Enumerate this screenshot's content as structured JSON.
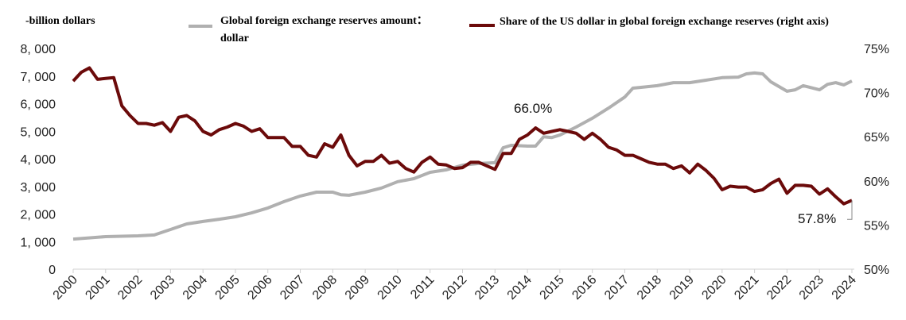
{
  "legend": {
    "unit_label": "-billion dollars",
    "reserves_label_line1": "Global foreign exchange reserves amount：",
    "reserves_label_line2": "dollar",
    "share_label": "Share of the US dollar in global foreign exchange reserves (right axis)"
  },
  "chart_data": {
    "type": "line",
    "xlim": [
      2000,
      2024
    ],
    "x_ticks": [
      "2000",
      "2001",
      "2002",
      "2003",
      "2004",
      "2005",
      "2006",
      "2007",
      "2008",
      "2009",
      "2010",
      "2011",
      "2012",
      "2013",
      "2014",
      "2015",
      "2016",
      "2017",
      "2018",
      "2019",
      "2020",
      "2021",
      "2022",
      "2023",
      "2024"
    ],
    "y_left": {
      "label": "-billion dollars",
      "lim": [
        0,
        8000
      ],
      "ticks": [
        "0",
        "1, 000",
        "2, 000",
        "3, 000",
        "4, 000",
        "5, 000",
        "6, 000",
        "7, 000",
        "8, 000"
      ]
    },
    "y_right": {
      "label": "right axis",
      "lim": [
        50,
        75
      ],
      "ticks": [
        "50%",
        "55%",
        "60%",
        "65%",
        "70%",
        "75%"
      ]
    },
    "grid": false,
    "legend_position": "top",
    "series": [
      {
        "name": "Global foreign exchange reserves amount：dollar",
        "axis": "left",
        "color": "#b0b0b0",
        "x": [
          2000,
          2001,
          2002,
          2002.5,
          2003,
          2003.5,
          2004,
          2004.5,
          2005,
          2005.5,
          2006,
          2006.5,
          2007,
          2007.5,
          2008,
          2008.25,
          2008.5,
          2009,
          2009.5,
          2010,
          2010.5,
          2011,
          2011.5,
          2012,
          2012.5,
          2013,
          2013.25,
          2013.5,
          2014,
          2014.25,
          2014.5,
          2014.75,
          2015,
          2015.5,
          2016,
          2016.5,
          2017,
          2017.25,
          2017.5,
          2018,
          2018.5,
          2019,
          2019.5,
          2020,
          2020.5,
          2020.75,
          2021,
          2021.25,
          2021.5,
          2022,
          2022.25,
          2022.5,
          2023,
          2023.25,
          2023.5,
          2023.75,
          2024
        ],
        "y": [
          1090,
          1180,
          1210,
          1240,
          1440,
          1640,
          1730,
          1810,
          1900,
          2040,
          2220,
          2450,
          2650,
          2790,
          2790,
          2700,
          2680,
          2790,
          2940,
          3170,
          3280,
          3510,
          3600,
          3770,
          3830,
          3860,
          4400,
          4490,
          4460,
          4460,
          4800,
          4770,
          4860,
          5150,
          5470,
          5840,
          6240,
          6560,
          6590,
          6650,
          6760,
          6760,
          6850,
          6940,
          6960,
          7080,
          7110,
          7080,
          6790,
          6450,
          6500,
          6650,
          6500,
          6700,
          6760,
          6680,
          6820
        ]
      },
      {
        "name": "Share of the US dollar in global foreign exchange reserves (right axis)",
        "axis": "right",
        "color": "#6b0a0a",
        "x": [
          2000,
          2000.25,
          2000.5,
          2000.75,
          2001,
          2001.25,
          2001.5,
          2001.75,
          2002,
          2002.25,
          2002.5,
          2002.75,
          2003,
          2003.25,
          2003.5,
          2003.75,
          2004,
          2004.25,
          2004.5,
          2004.75,
          2005,
          2005.25,
          2005.5,
          2005.75,
          2006,
          2006.5,
          2006.75,
          2007,
          2007.25,
          2007.5,
          2007.75,
          2008,
          2008.25,
          2008.5,
          2008.75,
          2009,
          2009.25,
          2009.5,
          2009.75,
          2010,
          2010.25,
          2010.5,
          2010.75,
          2011,
          2011.25,
          2011.5,
          2011.75,
          2012,
          2012.25,
          2012.5,
          2012.75,
          2013,
          2013.25,
          2013.5,
          2013.75,
          2014,
          2014.25,
          2014.5,
          2014.75,
          2015,
          2015.25,
          2015.5,
          2015.75,
          2016,
          2016.25,
          2016.5,
          2016.75,
          2017,
          2017.25,
          2017.5,
          2017.75,
          2018,
          2018.25,
          2018.5,
          2018.75,
          2019,
          2019.25,
          2019.5,
          2019.75,
          2020,
          2020.25,
          2020.5,
          2020.75,
          2021,
          2021.25,
          2021.5,
          2021.75,
          2022,
          2022.25,
          2022.5,
          2022.75,
          2023,
          2023.25,
          2023.5,
          2023.75,
          2024
        ],
        "y": [
          71.3,
          72.3,
          72.8,
          71.5,
          71.6,
          71.7,
          68.5,
          67.4,
          66.5,
          66.5,
          66.3,
          66.6,
          65.6,
          67.2,
          67.4,
          66.8,
          65.6,
          65.2,
          65.8,
          66.1,
          66.5,
          66.2,
          65.6,
          65.9,
          64.9,
          64.9,
          63.9,
          63.9,
          62.9,
          62.7,
          64.2,
          63.8,
          65.2,
          62.9,
          61.7,
          62.2,
          62.2,
          62.9,
          62.0,
          62.2,
          61.4,
          61.0,
          62.1,
          62.7,
          61.9,
          61.8,
          61.4,
          61.5,
          62.1,
          62.1,
          61.7,
          61.3,
          63.1,
          63.1,
          64.7,
          65.2,
          66.0,
          65.4,
          65.6,
          65.8,
          65.6,
          65.4,
          64.7,
          65.4,
          64.7,
          63.8,
          63.5,
          62.9,
          62.9,
          62.5,
          62.1,
          61.9,
          61.9,
          61.4,
          61.7,
          60.9,
          61.9,
          61.2,
          60.3,
          59.0,
          59.4,
          59.3,
          59.3,
          58.8,
          59.0,
          59.7,
          60.2,
          58.6,
          59.5,
          59.5,
          59.4,
          58.5,
          59.1,
          58.2,
          57.4,
          57.8
        ]
      }
    ],
    "annotations": {
      "peak": "66.0%",
      "latest": "57.8%"
    }
  }
}
